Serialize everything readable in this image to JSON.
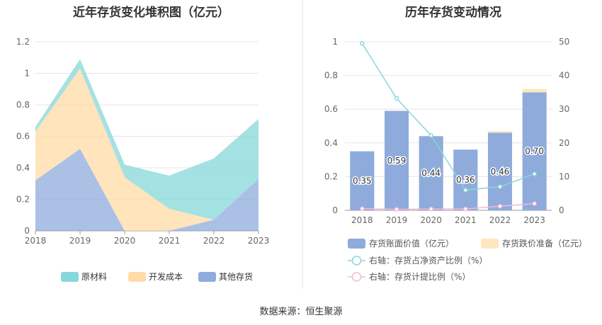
{
  "left_title": "近年存货变化堆积图（亿元）",
  "right_title": "历年存货变动情况",
  "source": "数据来源：恒生聚源",
  "colors": {
    "raw_materials": "#86d7d9",
    "dev_cost": "#ffdba6",
    "other_inventory": "#8eabdc",
    "book_value": "#8eabdc",
    "impairment": "#ffe7bd",
    "ratio_net_assets": "#88d6db",
    "provision_ratio": "#f2b8d6",
    "grid": "#e5e5e5",
    "axis_text": "#666666"
  },
  "chart_data": [
    {
      "type": "area",
      "stacked": true,
      "title": "近年存货变化堆积图（亿元）",
      "categories": [
        "2018",
        "2019",
        "2020",
        "2021",
        "2022",
        "2023"
      ],
      "ylim": [
        0,
        1.2
      ],
      "yticks": [
        "0",
        "0.2",
        "0.4",
        "0.6",
        "0.8",
        "1",
        "1.2"
      ],
      "grid": true,
      "legend_position": "bottom",
      "series": [
        {
          "name": "其他存货",
          "values": [
            0.32,
            0.52,
            0.0,
            0.0,
            0.07,
            0.33
          ]
        },
        {
          "name": "开发成本",
          "values": [
            0.31,
            0.51,
            0.34,
            0.14,
            0.0,
            0.0
          ]
        },
        {
          "name": "原材料",
          "values": [
            0.03,
            0.06,
            0.08,
            0.21,
            0.39,
            0.38
          ]
        }
      ]
    },
    {
      "type": "bar+line",
      "title": "历年存货变动情况",
      "categories": [
        "2018",
        "2019",
        "2020",
        "2021",
        "2022",
        "2023"
      ],
      "ylim": [
        0,
        1
      ],
      "yticks": [
        "0",
        "0.2",
        "0.4",
        "0.6",
        "0.8",
        "1"
      ],
      "y2lim": [
        0,
        50
      ],
      "y2ticks": [
        "0",
        "10",
        "20",
        "30",
        "40",
        "50"
      ],
      "grid": true,
      "legend_position": "bottom",
      "series": [
        {
          "name": "存货账面价值（亿元）",
          "kind": "bar",
          "axis": "left",
          "values": [
            0.35,
            0.59,
            0.44,
            0.36,
            0.46,
            0.7
          ],
          "labels": [
            "0.35",
            "0.59",
            "0.44",
            "0.36",
            "0.46",
            "0.70"
          ]
        },
        {
          "name": "存货跌价准备（亿元）",
          "kind": "bar",
          "axis": "left",
          "values": [
            0,
            0,
            0,
            0,
            0.01,
            0.02
          ]
        },
        {
          "name": "右轴：存货占净资产比例（%）",
          "kind": "line",
          "axis": "right",
          "values": [
            49.5,
            33.2,
            22.2,
            6.0,
            7.0,
            10.8
          ]
        },
        {
          "name": "右轴：存货计提比例（%）",
          "kind": "line",
          "axis": "right",
          "values": [
            0.5,
            0.3,
            0.4,
            0.4,
            1.2,
            2.0
          ]
        }
      ]
    }
  ]
}
